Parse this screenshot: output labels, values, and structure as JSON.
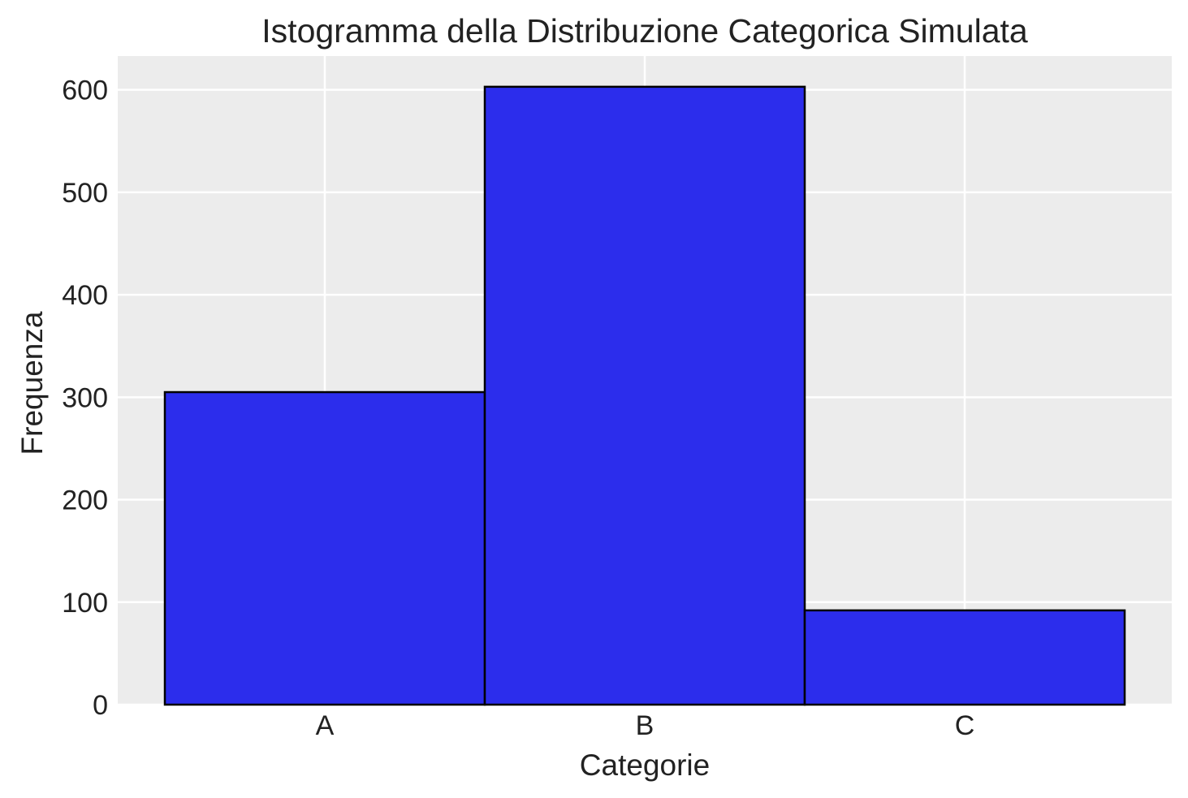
{
  "chart_data": {
    "type": "bar",
    "title": "Istogramma della Distribuzione Categorica Simulata",
    "xlabel": "Categorie",
    "ylabel": "Frequenza",
    "categories": [
      "A",
      "B",
      "C"
    ],
    "values": [
      305,
      603,
      92
    ],
    "ylim": [
      0,
      633
    ],
    "yticks": [
      0,
      100,
      200,
      300,
      400,
      500,
      600
    ],
    "grid": true,
    "colors": {
      "bar_fill": "#2c2dec",
      "bar_edge": "#000000",
      "plot_background": "#ececec",
      "grid": "#ffffff"
    }
  }
}
